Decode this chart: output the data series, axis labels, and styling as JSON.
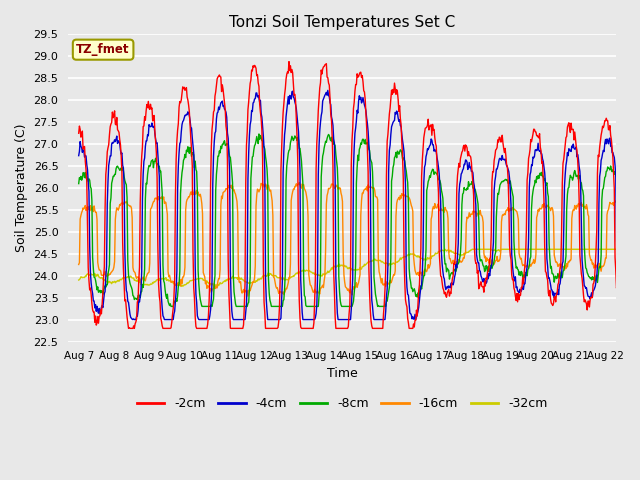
{
  "title": "Tonzi Soil Temperatures Set C",
  "xlabel": "Time",
  "ylabel": "Soil Temperature (C)",
  "ylim": [
    22.5,
    29.5
  ],
  "background_color": "#e0e0e0",
  "plot_bg_color": "#e8e8e8",
  "series_colors": {
    "-2cm": "#ff0000",
    "-4cm": "#0000cc",
    "-8cm": "#00aa00",
    "-16cm": "#ff8800",
    "-32cm": "#cccc00"
  },
  "legend_label": "TZ_fmet",
  "legend_label_color": "#8b0000",
  "legend_box_color": "#ffffcc",
  "xtick_labels": [
    "Aug 7",
    "Aug 8",
    "Aug 9",
    "Aug 10",
    "Aug 11",
    "Aug 12",
    "Aug 13",
    "Aug 14",
    "Aug 15",
    "Aug 16",
    "Aug 17",
    "Aug 18",
    "Aug 19",
    "Aug 20",
    "Aug 21",
    "Aug 22"
  ],
  "ytick_values": [
    22.5,
    23.0,
    23.5,
    24.0,
    24.5,
    25.0,
    25.5,
    26.0,
    26.5,
    27.0,
    27.5,
    28.0,
    28.5,
    29.0,
    29.5
  ],
  "days": 16
}
